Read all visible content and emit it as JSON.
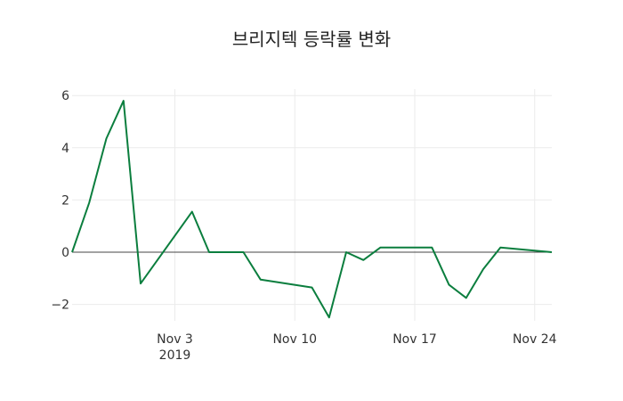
{
  "chart_data": {
    "type": "line",
    "title": "브리지텍 등락률 변화",
    "xlabel": "",
    "ylabel": "",
    "x": [
      "2019-10-28",
      "2019-10-29",
      "2019-10-30",
      "2019-10-31",
      "2019-11-01",
      "2019-11-04",
      "2019-11-05",
      "2019-11-07",
      "2019-11-08",
      "2019-11-11",
      "2019-11-12",
      "2019-11-13",
      "2019-11-14",
      "2019-11-15",
      "2019-11-18",
      "2019-11-19",
      "2019-11-20",
      "2019-11-21",
      "2019-11-22",
      "2019-11-25"
    ],
    "series": [
      {
        "name": "등락률",
        "color": "#0b7e3e",
        "values": [
          0,
          1.9,
          4.35,
          5.8,
          -1.2,
          1.55,
          0,
          0,
          -1.05,
          -1.35,
          -2.5,
          0,
          -0.3,
          0.18,
          0.18,
          -1.25,
          -1.75,
          -0.65,
          0.18,
          0
        ]
      }
    ],
    "ylim": [
      -2.9,
      6.2
    ],
    "yticks": [
      -2,
      0,
      2,
      4,
      6
    ],
    "ytick_labels": [
      "−2",
      "0",
      "2",
      "4",
      "6"
    ],
    "xticks": [
      "2019-11-03",
      "2019-11-10",
      "2019-11-17",
      "2019-11-24"
    ],
    "xtick_labels": [
      "Nov 3",
      "Nov 10",
      "Nov 17",
      "Nov 24"
    ],
    "xtick_sublabel": "2019",
    "grid": true,
    "legend": false
  }
}
